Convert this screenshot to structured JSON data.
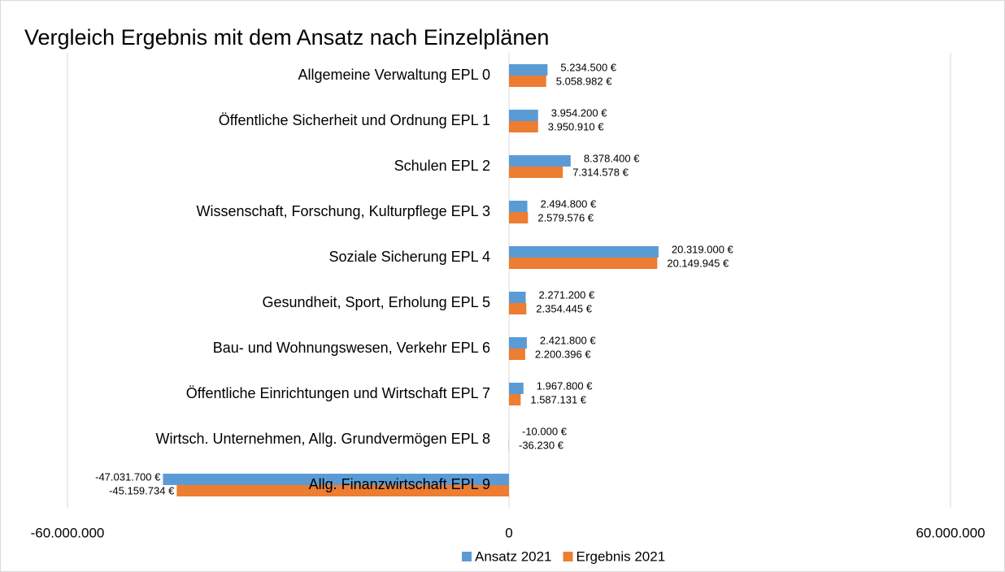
{
  "chart_data": {
    "type": "barh",
    "title": "Vergleich Ergebnis mit dem Ansatz nach Einzelplänen",
    "categories": [
      "Allgemeine Verwaltung EPL 0",
      "Öffentliche Sicherheit und Ordnung EPL 1",
      "Schulen EPL 2",
      "Wissenschaft, Forschung, Kulturpflege EPL 3",
      "Soziale Sicherung EPL 4",
      "Gesundheit, Sport, Erholung EPL 5",
      "Bau- und Wohnungswesen, Verkehr EPL 6",
      "Öffentliche Einrichtungen und Wirtschaft EPL 7",
      "Wirtsch. Unternehmen, Allg. Grundvermögen EPL 8",
      "Allg. Finanzwirtschaft EPL 9"
    ],
    "series": [
      {
        "name": "Ansatz 2021",
        "color": "#5b9bd5",
        "values": [
          5234500,
          3954200,
          8378400,
          2494800,
          20319000,
          2271200,
          2421800,
          1967800,
          -10000,
          -47031700
        ],
        "value_labels": [
          "5.234.500 €",
          "3.954.200 €",
          "8.378.400 €",
          "2.494.800 €",
          "20.319.000 €",
          "2.271.200 €",
          "2.421.800 €",
          "1.967.800 €",
          "-10.000 €",
          "-47.031.700 €"
        ]
      },
      {
        "name": "Ergebnis 2021",
        "color": "#ed7d31",
        "values": [
          5058982,
          3950910,
          7314578,
          2579576,
          20149945,
          2354445,
          2200396,
          1587131,
          -36230,
          -45159734
        ],
        "value_labels": [
          "5.058.982 €",
          "3.950.910 €",
          "7.314.578 €",
          "2.579.576 €",
          "20.149.945 €",
          "2.354.445 €",
          "2.200.396 €",
          "1.587.131 €",
          "-36.230 €",
          "-45.159.734 €"
        ]
      }
    ],
    "xlim": [
      -60000000,
      60000000
    ],
    "xticks": [
      {
        "value": -60000000,
        "label": "-60.000.000"
      },
      0,
      {
        "value": 60000000,
        "label": "60.000.000"
      }
    ],
    "grid": true,
    "legend": "bottom"
  }
}
